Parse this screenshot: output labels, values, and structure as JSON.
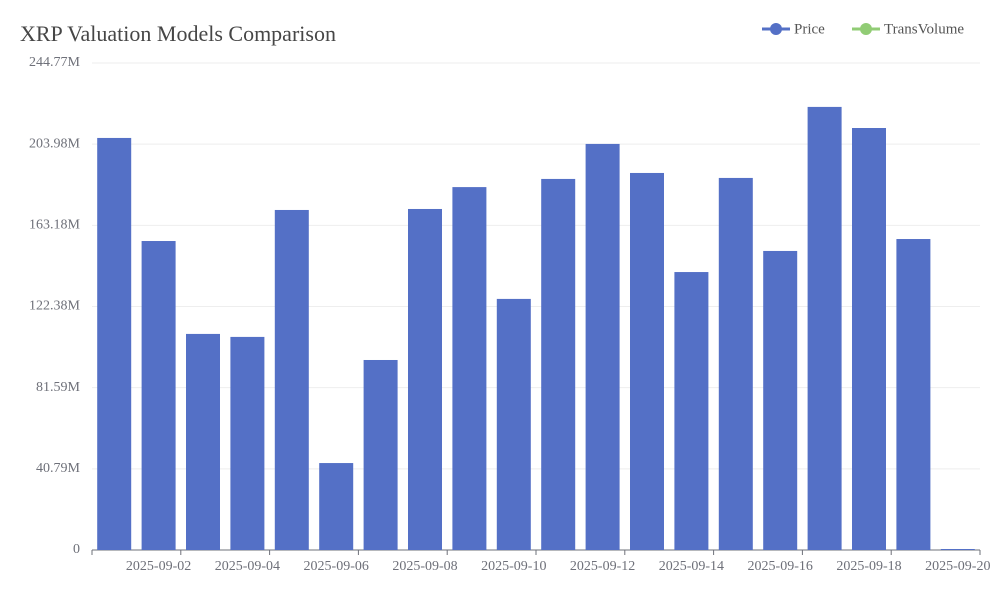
{
  "chart_data": {
    "type": "bar",
    "title": "XRP Valuation Models Comparison",
    "categories": [
      null,
      "2025-09-02",
      null,
      "2025-09-04",
      null,
      "2025-09-06",
      null,
      "2025-09-08",
      null,
      "2025-09-10",
      null,
      "2025-09-12",
      null,
      "2025-09-14",
      null,
      "2025-09-16",
      null,
      "2025-09-18",
      null,
      "2025-09-20"
    ],
    "series": [
      {
        "name": "Price",
        "color": "#5470c6",
        "values": [
          207100000,
          155300000,
          108600000,
          107100000,
          170900000,
          43700000,
          95500000,
          171400000,
          182400000,
          126200000,
          186500000,
          204100000,
          189500000,
          139700000,
          187000000,
          150300000,
          222700000,
          212100000,
          156300000,
          500000
        ]
      },
      {
        "name": "TransVolume",
        "color": "#91cc75",
        "values": [
          null,
          null,
          null,
          null,
          null,
          null,
          null,
          null,
          null,
          null,
          null,
          null,
          null,
          null,
          null,
          null,
          null,
          null,
          null,
          null
        ]
      }
    ],
    "ylim": [
      0,
      244770000
    ],
    "yticks": [
      0,
      {
        "value": 40790000,
        "label": "40.79M"
      },
      {
        "value": 81590000,
        "label": "81.59M"
      },
      {
        "value": 122380000,
        "label": "122.38M"
      },
      {
        "value": 163180000,
        "label": "163.18M"
      },
      {
        "value": 203980000,
        "label": "203.98M"
      },
      {
        "value": 244770000,
        "label": "244.77M"
      }
    ],
    "grid": true,
    "legend": "top-right"
  }
}
